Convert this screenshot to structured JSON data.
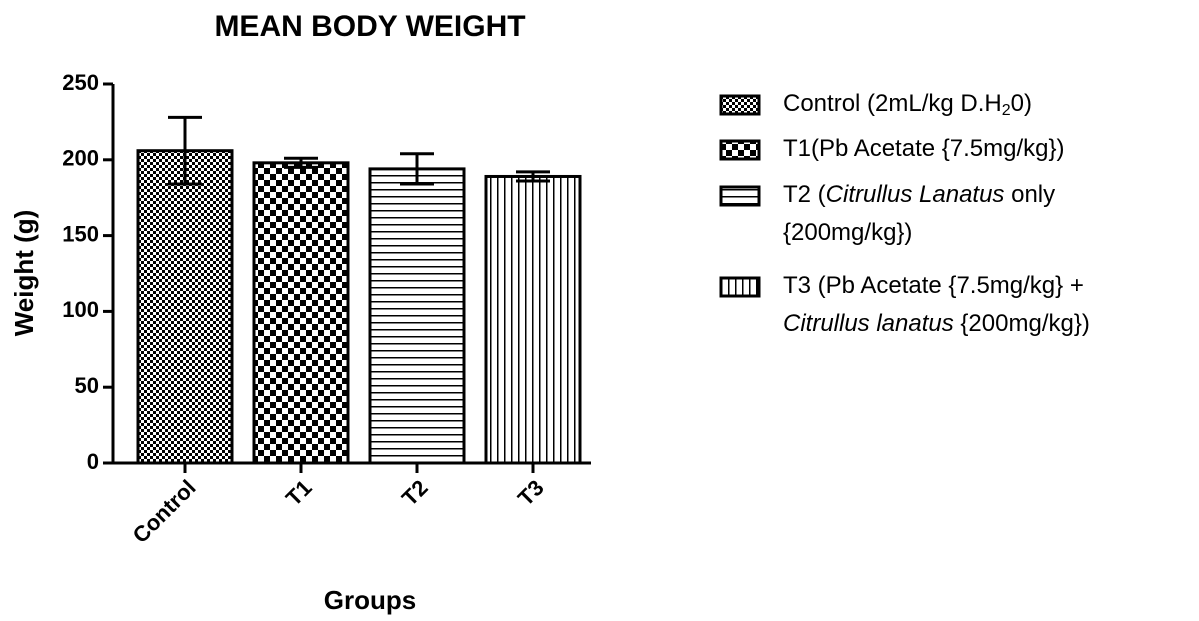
{
  "chart_data": {
    "type": "bar",
    "title": "MEAN BODY WEIGHT",
    "x_label": "Groups",
    "y_label": "Weight (g)",
    "categories": [
      "Control",
      "T1",
      "T2",
      "T3"
    ],
    "values": [
      206,
      198,
      194,
      189
    ],
    "errors": [
      22,
      3,
      10,
      3
    ],
    "patterns": [
      "fine-checker",
      "checker",
      "horizontal",
      "vertical"
    ],
    "color": "#000000",
    "ylim": [
      0,
      250
    ],
    "yticks": [
      0,
      50,
      100,
      150,
      200,
      250
    ],
    "legend": [
      [
        [
          {
            "text": "Control (2mL/kg D.H"
          },
          {
            "text": "2",
            "style": "sub"
          },
          {
            "text": "0)"
          }
        ]
      ],
      [
        [
          {
            "text": "T1(Pb Acetate {7.5mg/kg})"
          }
        ]
      ],
      [
        [
          {
            "text": "T2 ("
          },
          {
            "text": "Citrullus Lanatus",
            "style": "italic"
          },
          {
            "text": "  only"
          }
        ],
        [
          {
            "text": "{200mg/kg})"
          }
        ]
      ],
      [
        [
          {
            "text": "T3 (Pb Acetate {7.5mg/kg} +"
          }
        ],
        [
          {
            "text": "Citrullus lanatus",
            "style": "italic"
          },
          {
            "text": " {200mg/kg})"
          }
        ]
      ]
    ]
  }
}
